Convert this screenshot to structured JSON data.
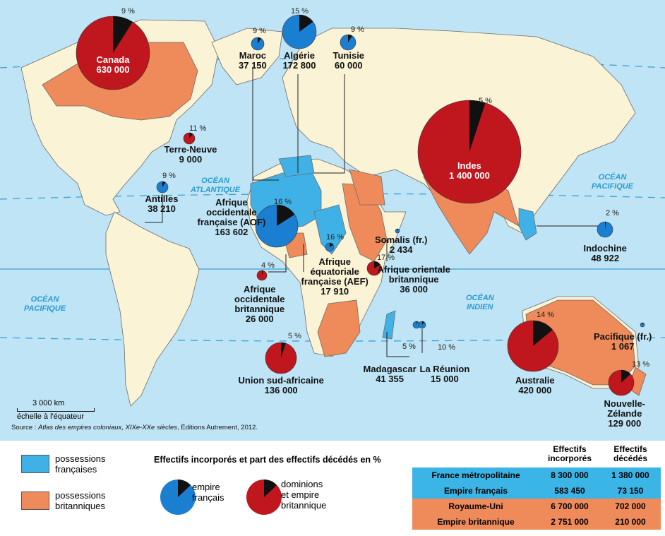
{
  "oceans": {
    "atlantique": "OCÉAN\nATLANTIQUE",
    "pacifique_ouest": "OCÉAN\nPACIFIQUE",
    "pacifique_est": "OCÉAN\nPACIFIQUE",
    "indien": "OCÉAN\nINDIEN"
  },
  "territories": [
    {
      "id": "canada",
      "name": "Canada",
      "value": "630 000",
      "pct": "9 %",
      "type": "brit"
    },
    {
      "id": "maroc",
      "name": "Maroc",
      "value": "37 150",
      "pct": "9 %",
      "type": "fr"
    },
    {
      "id": "algerie",
      "name": "Algérie",
      "value": "172 800",
      "pct": "15 %",
      "type": "fr"
    },
    {
      "id": "tunisie",
      "name": "Tunisie",
      "value": "60 000",
      "pct": "9 %",
      "type": "fr"
    },
    {
      "id": "terre-neuve",
      "name": "Terre-Neuve",
      "value": "9 000",
      "pct": "11 %",
      "type": "brit"
    },
    {
      "id": "antilles",
      "name": "Antilles",
      "value": "38 210",
      "pct": "9 %",
      "type": "fr"
    },
    {
      "id": "aof",
      "name": "Afrique\noccidentale\nfrançaise (AOF)",
      "value": "163 602",
      "pct": "16 %",
      "type": "fr"
    },
    {
      "id": "aef",
      "name": "Afrique\néquatoriale\nfrançaise (AEF)",
      "value": "17 910",
      "pct": "16 %",
      "type": "fr"
    },
    {
      "id": "aob",
      "name": "Afrique\noccidentale\nbritannique",
      "value": "26 000",
      "pct": "4 %",
      "type": "brit"
    },
    {
      "id": "aorb",
      "name": "Afrique orientale\nbritannique",
      "value": "36 000",
      "pct": "17 %",
      "type": "brit"
    },
    {
      "id": "somalis",
      "name": "Somalis (fr.)",
      "value": "2 434",
      "pct": "",
      "type": "fr"
    },
    {
      "id": "indes",
      "name": "Indes",
      "value": "1 400 000",
      "pct": "5 %",
      "type": "brit"
    },
    {
      "id": "indochine",
      "name": "Indochine",
      "value": "48 922",
      "pct": "2 %",
      "type": "fr"
    },
    {
      "id": "usa",
      "name": "Union sud-africaine",
      "value": "136 000",
      "pct": "5 %",
      "type": "brit"
    },
    {
      "id": "madagascar",
      "name": "Madagascar",
      "value": "41 355",
      "pct": "5 %",
      "type": "fr"
    },
    {
      "id": "reunion",
      "name": "La Réunion",
      "value": "15 000",
      "pct": "10 %",
      "type": "fr"
    },
    {
      "id": "australie",
      "name": "Australie",
      "value": "420 000",
      "pct": "14 %",
      "type": "brit"
    },
    {
      "id": "pacifique",
      "name": "Pacifique (fr.)",
      "value": "1 067",
      "pct": "",
      "type": "fr"
    },
    {
      "id": "nz",
      "name": "Nouvelle-\nZélande",
      "value": "129 000",
      "pct": "13 %",
      "type": "brit"
    }
  ],
  "scale": {
    "distance": "3 000 km",
    "note": "échelle à l'équateur"
  },
  "source": {
    "prefix": "Source : ",
    "title": "Atlas des empires coloniaux, XIXe-XXe siècles",
    "suffix": ", Éditions Autrement, 2012."
  },
  "legend": {
    "french": "possessions\nfrançaises",
    "british": "possessions\nbritanniques",
    "title": "Effectifs incorporés et part des effectifs décédés en %",
    "empire_fr": "empire\nfrançais",
    "empire_brit": "dominions\net empire\nbritannique"
  },
  "table": {
    "headers": [
      "Effectifs\nincorporés",
      "Effectifs\ndécédés"
    ],
    "rows": [
      {
        "label": "France métropolitaine",
        "inc": "8 300 000",
        "dec": "1 380 000",
        "type": "fr"
      },
      {
        "label": "Empire français",
        "inc": "583 450",
        "dec": "73 150",
        "type": "fr"
      },
      {
        "label": "Royaume-Uni",
        "inc": "6 700 000",
        "dec": "702 000",
        "type": "brit"
      },
      {
        "label": "Empire britannique",
        "inc": "2 751 000",
        "dec": "210 000",
        "type": "brit"
      }
    ]
  },
  "colors": {
    "ocean": "#bfe4f5",
    "land": "#fbf3d5",
    "french": "#3fb1e6",
    "british": "#ef8a5a",
    "pie_fr": "#1b7fd1",
    "pie_brit": "#c0161e",
    "dead": "#111111"
  }
}
